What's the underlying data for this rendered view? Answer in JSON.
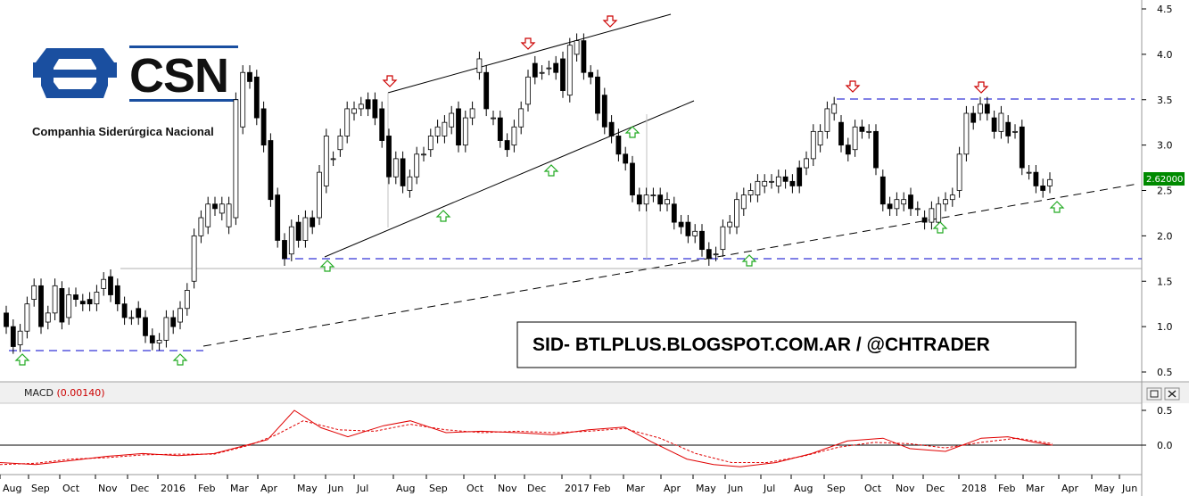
{
  "chart_data": [
    {
      "type": "candlestick",
      "price_axis": {
        "ylim": [
          0.45,
          4.5
        ],
        "ticks": [
          "0.5",
          "1.0",
          "1.5",
          "2.0",
          "2.5",
          "3.0",
          "3.5",
          "4.0",
          "4.5"
        ]
      },
      "last_price_label": "2.62000",
      "x_axis_labels": [
        "Aug",
        "Sep",
        "Oct",
        "Nov",
        "Dec",
        "2016",
        "Feb",
        "Mar",
        "Apr",
        "May",
        "Jun",
        "Jul",
        "Aug",
        "Sep",
        "Oct",
        "Nov",
        "Dec",
        "2017",
        "Feb",
        "Mar",
        "Apr",
        "May",
        "Jun",
        "Jul",
        "Aug",
        "Sep",
        "Oct",
        "Nov",
        "Dec",
        "2018",
        "Feb",
        "Mar",
        "Apr",
        "May",
        "Jun"
      ],
      "candles": [
        [
          0,
          1.15,
          1.0
        ],
        [
          1,
          1.0,
          0.78
        ],
        [
          2,
          0.8,
          0.95
        ],
        [
          3,
          0.95,
          1.25
        ],
        [
          4,
          1.3,
          1.45
        ],
        [
          5,
          1.45,
          1.0
        ],
        [
          6,
          1.05,
          1.15
        ],
        [
          7,
          1.15,
          1.45
        ],
        [
          8,
          1.42,
          1.05
        ],
        [
          9,
          1.1,
          1.35
        ],
        [
          10,
          1.35,
          1.3
        ],
        [
          11,
          1.28,
          1.25
        ],
        [
          12,
          1.3,
          1.25
        ],
        [
          13,
          1.25,
          1.38
        ],
        [
          14,
          1.42,
          1.52
        ],
        [
          15,
          1.55,
          1.35
        ],
        [
          16,
          1.45,
          1.25
        ],
        [
          17,
          1.25,
          1.1
        ],
        [
          18,
          1.1,
          1.1
        ],
        [
          19,
          1.2,
          1.1
        ],
        [
          20,
          1.1,
          0.9
        ],
        [
          21,
          0.9,
          0.82
        ],
        [
          22,
          0.82,
          0.85
        ],
        [
          23,
          0.85,
          1.1
        ],
        [
          24,
          1.1,
          1.0
        ],
        [
          25,
          1.05,
          1.2
        ],
        [
          26,
          1.2,
          1.4
        ],
        [
          27,
          1.5,
          2.0
        ],
        [
          28,
          2.0,
          2.2
        ],
        [
          29,
          2.1,
          2.35
        ],
        [
          30,
          2.35,
          2.3
        ],
        [
          31,
          2.25,
          2.35
        ],
        [
          32,
          2.1,
          2.35
        ],
        [
          33,
          2.2,
          3.5
        ],
        [
          34,
          3.2,
          3.8
        ],
        [
          35,
          3.8,
          3.7
        ],
        [
          36,
          3.75,
          3.3
        ],
        [
          37,
          3.4,
          3.0
        ],
        [
          38,
          3.05,
          2.4
        ],
        [
          39,
          2.45,
          1.95
        ],
        [
          40,
          1.95,
          1.75
        ],
        [
          41,
          1.8,
          2.1
        ],
        [
          42,
          2.15,
          1.95
        ],
        [
          43,
          1.95,
          2.2
        ],
        [
          44,
          2.2,
          2.1
        ],
        [
          45,
          2.2,
          2.7
        ],
        [
          46,
          2.55,
          3.1
        ],
        [
          47,
          2.85,
          2.85
        ],
        [
          48,
          2.95,
          3.1
        ],
        [
          49,
          3.1,
          3.4
        ],
        [
          50,
          3.35,
          3.4
        ],
        [
          51,
          3.4,
          3.45
        ],
        [
          52,
          3.5,
          3.4
        ],
        [
          53,
          3.5,
          3.3
        ],
        [
          54,
          3.4,
          3.05
        ],
        [
          55,
          3.1,
          2.65
        ],
        [
          56,
          2.65,
          2.85
        ],
        [
          57,
          2.85,
          2.55
        ],
        [
          58,
          2.5,
          2.65
        ],
        [
          59,
          2.65,
          2.9
        ],
        [
          60,
          2.9,
          2.9
        ],
        [
          61,
          2.95,
          3.1
        ],
        [
          62,
          3.1,
          3.2
        ],
        [
          63,
          3.1,
          3.25
        ],
        [
          64,
          3.2,
          3.35
        ],
        [
          65,
          3.4,
          3.0
        ],
        [
          66,
          3.0,
          3.3
        ],
        [
          67,
          3.3,
          3.4
        ],
        [
          68,
          3.8,
          3.95
        ],
        [
          69,
          3.8,
          3.4
        ],
        [
          70,
          3.3,
          3.3
        ],
        [
          71,
          3.3,
          3.05
        ],
        [
          72,
          3.05,
          2.95
        ],
        [
          73,
          3.0,
          3.2
        ],
        [
          74,
          3.2,
          3.4
        ],
        [
          75,
          3.45,
          3.75
        ],
        [
          76,
          3.9,
          3.75
        ],
        [
          77,
          3.8,
          3.8
        ],
        [
          78,
          3.85,
          3.85
        ],
        [
          79,
          3.9,
          3.8
        ],
        [
          80,
          3.95,
          3.6
        ],
        [
          81,
          3.55,
          4.1
        ],
        [
          82,
          4.0,
          4.15
        ],
        [
          83,
          4.15,
          3.8
        ],
        [
          84,
          3.8,
          3.75
        ],
        [
          85,
          3.75,
          3.35
        ],
        [
          86,
          3.55,
          3.2
        ],
        [
          87,
          3.25,
          3.1
        ],
        [
          88,
          3.1,
          2.9
        ],
        [
          89,
          2.9,
          2.8
        ],
        [
          90,
          2.8,
          2.45
        ],
        [
          91,
          2.45,
          2.35
        ],
        [
          92,
          2.35,
          2.45
        ],
        [
          93,
          2.45,
          2.45
        ],
        [
          94,
          2.45,
          2.35
        ],
        [
          95,
          2.35,
          2.4
        ],
        [
          96,
          2.35,
          2.15
        ],
        [
          97,
          2.15,
          2.1
        ],
        [
          98,
          2.15,
          2.0
        ],
        [
          99,
          2.0,
          2.05
        ],
        [
          100,
          2.05,
          1.85
        ],
        [
          101,
          1.85,
          1.75
        ],
        [
          102,
          1.8,
          1.8
        ],
        [
          103,
          1.85,
          2.1
        ],
        [
          104,
          2.1,
          2.15
        ],
        [
          105,
          2.1,
          2.4
        ],
        [
          106,
          2.3,
          2.45
        ],
        [
          107,
          2.45,
          2.5
        ],
        [
          108,
          2.45,
          2.6
        ],
        [
          109,
          2.55,
          2.6
        ],
        [
          110,
          2.6,
          2.6
        ],
        [
          111,
          2.55,
          2.65
        ],
        [
          112,
          2.65,
          2.6
        ],
        [
          113,
          2.6,
          2.55
        ],
        [
          114,
          2.75,
          2.55
        ],
        [
          115,
          2.75,
          2.85
        ],
        [
          116,
          2.85,
          3.15
        ],
        [
          117,
          3.0,
          3.15
        ],
        [
          118,
          3.15,
          3.4
        ],
        [
          119,
          3.35,
          3.45
        ],
        [
          120,
          3.25,
          3.0
        ],
        [
          121,
          3.0,
          2.9
        ],
        [
          122,
          2.95,
          3.2
        ],
        [
          123,
          3.2,
          3.15
        ],
        [
          124,
          3.15,
          3.15
        ],
        [
          125,
          3.15,
          2.75
        ],
        [
          126,
          2.65,
          2.35
        ],
        [
          127,
          2.35,
          2.3
        ],
        [
          128,
          2.3,
          2.4
        ],
        [
          129,
          2.35,
          2.4
        ],
        [
          130,
          2.45,
          2.3
        ],
        [
          131,
          2.3,
          2.3
        ],
        [
          132,
          2.2,
          2.15
        ],
        [
          133,
          2.15,
          2.3
        ],
        [
          134,
          2.15,
          2.35
        ],
        [
          135,
          2.35,
          2.4
        ],
        [
          136,
          2.4,
          2.45
        ],
        [
          137,
          2.5,
          2.9
        ],
        [
          138,
          2.9,
          3.35
        ],
        [
          139,
          3.35,
          3.25
        ],
        [
          140,
          3.35,
          3.45
        ],
        [
          141,
          3.45,
          3.35
        ],
        [
          142,
          3.3,
          3.15
        ],
        [
          143,
          3.15,
          3.35
        ],
        [
          144,
          3.25,
          3.1
        ],
        [
          145,
          3.15,
          3.15
        ],
        [
          146,
          3.2,
          2.75
        ],
        [
          147,
          2.7,
          2.7
        ],
        [
          148,
          2.7,
          2.55
        ],
        [
          149,
          2.55,
          2.5
        ],
        [
          150,
          2.55,
          2.62
        ]
      ],
      "macd": {
        "label": "MACD",
        "value": "(0.00140)",
        "ylim": [
          -0.3,
          0.6
        ],
        "ticks": [
          "0.0",
          "0.5"
        ]
      },
      "colors": {
        "up": "#ffffff",
        "down": "#000000",
        "signal": "#e00000",
        "support": "#0000cc",
        "buy_arrow": "#22aa22",
        "sell_arrow": "#cc0000"
      }
    }
  ],
  "logo": {
    "name": "CSN",
    "subtitle": "Companhia Siderúrgica Nacional",
    "color": "#1a4fa0"
  },
  "watermark": "SID- BTLPLUS.BLOGSPOT.COM.AR / @CHTRADER",
  "icons": [
    "window-restore-icon",
    "close-icon"
  ]
}
